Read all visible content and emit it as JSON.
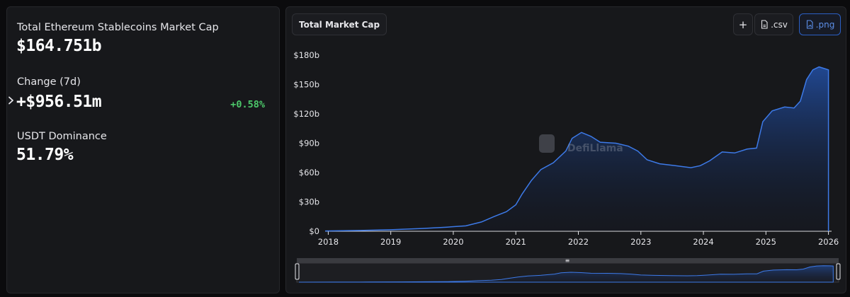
{
  "stats": {
    "market_cap_label": "Total Ethereum Stablecoins Market Cap",
    "market_cap_value": "$164.751b",
    "change_label": "Change (7d)",
    "change_value": "+$956.51m",
    "change_percent": "+0.58%",
    "dominance_label": "USDT Dominance",
    "dominance_value": "51.79%"
  },
  "toolbar": {
    "metric_select": "Total Market Cap",
    "add_label": "+",
    "csv_label": ".csv",
    "png_label": ".png"
  },
  "watermark": "DefiLlama",
  "colors": {
    "line": "#3d7ae8",
    "positive": "#4cc86a",
    "accent": "#2b5fc4"
  },
  "chart_data": {
    "type": "area",
    "title": "",
    "xlabel": "",
    "ylabel": "",
    "x_ticks": [
      "2018",
      "2019",
      "2020",
      "2021",
      "2022",
      "2023",
      "2024",
      "2025",
      "2026"
    ],
    "y_ticks": [
      "$0",
      "$30b",
      "$60b",
      "$90b",
      "$120b",
      "$150b",
      "$180b"
    ],
    "ylim": [
      0,
      180
    ],
    "xlim": [
      2017.95,
      2026.05
    ],
    "grid": false,
    "legend": "none",
    "series": [
      {
        "unit": "billion USD",
        "points": [
          [
            2017.95,
            0.3
          ],
          [
            2018.5,
            0.8
          ],
          [
            2019.0,
            1.5
          ],
          [
            2019.5,
            2.8
          ],
          [
            2019.9,
            4.2
          ],
          [
            2020.2,
            5.5
          ],
          [
            2020.45,
            9.5
          ],
          [
            2020.65,
            15
          ],
          [
            2020.85,
            20
          ],
          [
            2021.0,
            27
          ],
          [
            2021.1,
            38
          ],
          [
            2021.25,
            52
          ],
          [
            2021.4,
            63
          ],
          [
            2021.6,
            70
          ],
          [
            2021.8,
            82
          ],
          [
            2021.9,
            95
          ],
          [
            2022.05,
            101
          ],
          [
            2022.2,
            97
          ],
          [
            2022.35,
            91
          ],
          [
            2022.6,
            90
          ],
          [
            2022.8,
            87
          ],
          [
            2022.95,
            82
          ],
          [
            2023.1,
            73
          ],
          [
            2023.3,
            69
          ],
          [
            2023.55,
            67
          ],
          [
            2023.8,
            65
          ],
          [
            2023.95,
            67
          ],
          [
            2024.1,
            72
          ],
          [
            2024.3,
            81
          ],
          [
            2024.5,
            80
          ],
          [
            2024.7,
            84
          ],
          [
            2024.85,
            85
          ],
          [
            2024.95,
            112
          ],
          [
            2025.1,
            123
          ],
          [
            2025.3,
            127
          ],
          [
            2025.45,
            126
          ],
          [
            2025.55,
            133
          ],
          [
            2025.65,
            155
          ],
          [
            2025.75,
            165
          ],
          [
            2025.85,
            168
          ],
          [
            2025.95,
            166
          ],
          [
            2026.0,
            165
          ]
        ]
      }
    ]
  }
}
